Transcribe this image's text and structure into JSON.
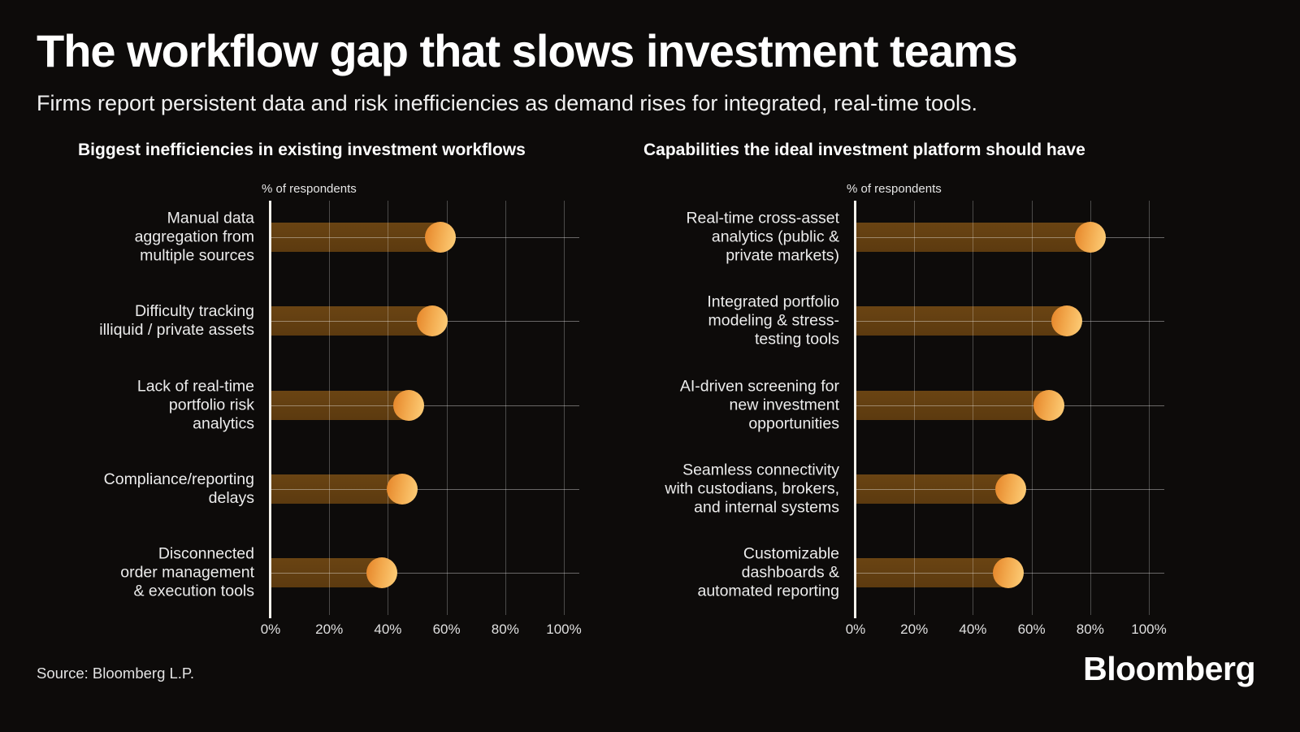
{
  "header": {
    "title": "The workflow gap that slows investment teams",
    "subtitle": "Firms report persistent data and risk inefficiencies as demand rises for integrated, real-time tools."
  },
  "footer": {
    "source": "Source: Bloomberg L.P.",
    "logo": "Bloomberg"
  },
  "colors": {
    "background": "#0d0b0a",
    "bar": "#5f3d12",
    "dot_gradient_start": "#e78a2e",
    "dot_gradient_end": "#fcca74",
    "axis": "#f5f2ec",
    "gridline": "#4a4846"
  },
  "chart_data": [
    {
      "type": "bar",
      "orientation": "horizontal",
      "title": "Biggest inefficiencies in existing investment workflows",
      "axis_label": "% of respondents",
      "xlabel": "% of respondents",
      "ylabel": "",
      "xlim": [
        0,
        100
      ],
      "xticks": [
        "0%",
        "20%",
        "40%",
        "60%",
        "80%",
        "100%"
      ],
      "xtick_values": [
        0,
        20,
        40,
        60,
        80,
        100
      ],
      "grid": true,
      "legend": false,
      "categories": [
        "Manual data aggregation from multiple sources",
        "Difficulty tracking illiquid / private assets",
        "Lack of real-time portfolio risk analytics",
        "Compliance/reporting delays",
        "Disconnected order management & execution tools"
      ],
      "category_lines": [
        [
          "Manual data",
          "aggregation from",
          "multiple sources"
        ],
        [
          "Difficulty tracking",
          "illiquid / private assets"
        ],
        [
          "Lack of real-time",
          "portfolio risk",
          "analytics"
        ],
        [
          "Compliance/reporting",
          "delays"
        ],
        [
          "Disconnected",
          "order management",
          "& execution tools"
        ]
      ],
      "values": [
        58,
        55,
        47,
        45,
        38
      ]
    },
    {
      "type": "bar",
      "orientation": "horizontal",
      "title": "Capabilities the ideal investment platform should have",
      "axis_label": "% of respondents",
      "xlabel": "% of respondents",
      "ylabel": "",
      "xlim": [
        0,
        100
      ],
      "xticks": [
        "0%",
        "20%",
        "40%",
        "60%",
        "80%",
        "100%"
      ],
      "xtick_values": [
        0,
        20,
        40,
        60,
        80,
        100
      ],
      "grid": true,
      "legend": false,
      "categories": [
        "Real-time cross-asset analytics (public & private markets)",
        "Integrated portfolio modeling & stress-testing tools",
        "AI-driven screening for new investment opportunities",
        "Seamless connectivity with custodians, brokers, and internal systems",
        "Customizable dashboards & automated reporting"
      ],
      "category_lines": [
        [
          "Real-time cross-asset",
          "analytics (public &",
          "private markets)"
        ],
        [
          "Integrated portfolio",
          "modeling & stress-",
          "testing tools"
        ],
        [
          "AI-driven screening for",
          "new investment",
          "opportunities"
        ],
        [
          "Seamless connectivity",
          "with custodians, brokers,",
          "and internal systems"
        ],
        [
          "Customizable",
          "dashboards &",
          "automated reporting"
        ]
      ],
      "values": [
        80,
        72,
        66,
        53,
        52
      ]
    }
  ]
}
